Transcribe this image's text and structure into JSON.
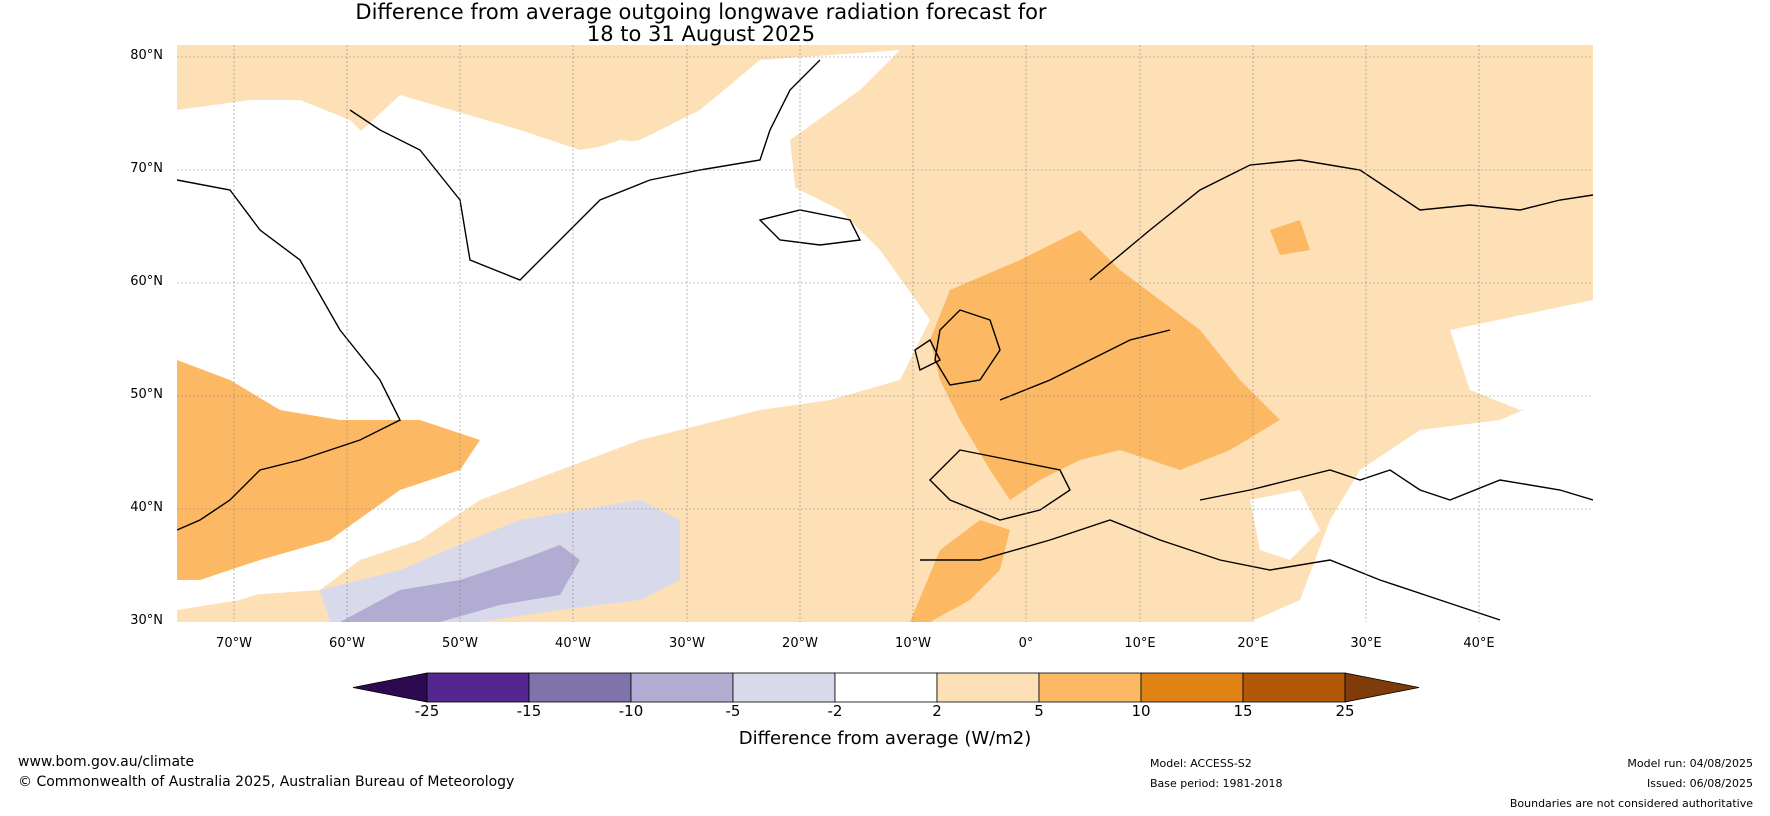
{
  "title_line1": "Difference from average outgoing longwave radiation forecast for",
  "title_line2": "18 to 31 August 2025",
  "lat_labels": [
    "80°N",
    "70°N",
    "60°N",
    "50°N",
    "40°N",
    "30°N"
  ],
  "lon_labels": [
    "70°W",
    "60°W",
    "50°W",
    "40°W",
    "30°W",
    "20°W",
    "10°W",
    "0°",
    "10°E",
    "20°E",
    "30°E",
    "40°E"
  ],
  "colorbar": {
    "ticks": [
      "-25",
      "-15",
      "-10",
      "-5",
      "-2",
      "2",
      "5",
      "10",
      "15",
      "25"
    ],
    "label": "Difference from average (W/m2)",
    "colors": [
      "#2d0a50",
      "#54278f",
      "#8073ac",
      "#b2abd2",
      "#d8daeb",
      "#ffffff",
      "#fde0b6",
      "#fdb863",
      "#e08214",
      "#b35806",
      "#7f3b08"
    ]
  },
  "footer": {
    "website": "www.bom.gov.au/climate",
    "copyright": "© Commonwealth of Australia 2025, Australian Bureau of Meteorology",
    "model": "Model: ACCESS-S2",
    "base_period": "Base period: 1981-2018",
    "model_run": "Model run: 04/08/2025",
    "issued": "Issued: 06/08/2025",
    "disclaimer": "Boundaries are not considered authoritative"
  }
}
